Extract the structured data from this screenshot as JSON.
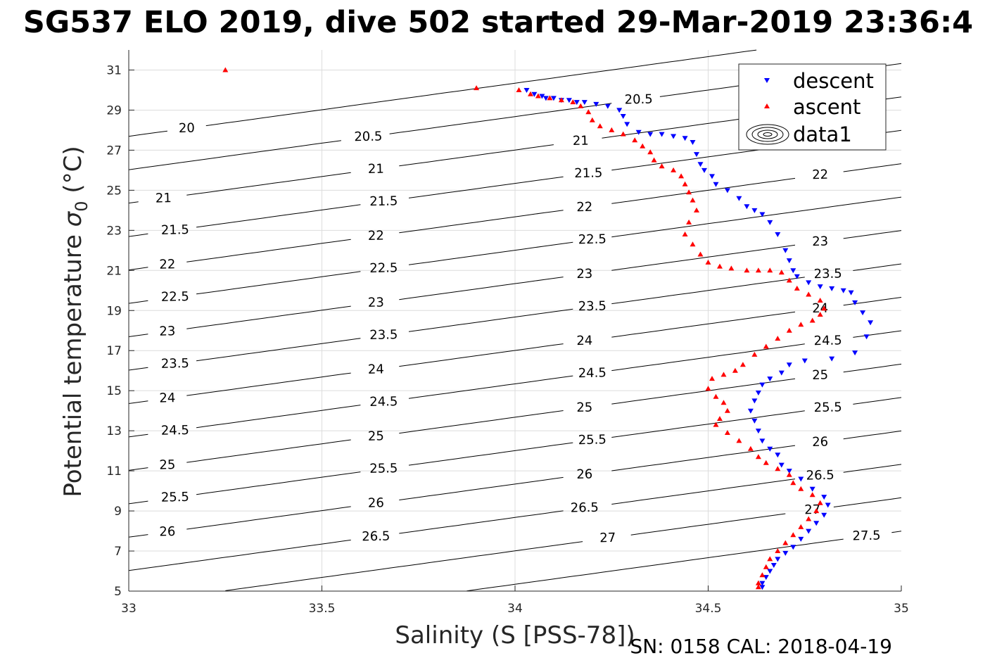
{
  "title": "SG537 ELO 2019, dive 502 started 29-Mar-2019 23:36:4",
  "footer": "SN: 0158  CAL: 2018-04-19",
  "chart_data": {
    "type": "scatter",
    "title": "SG537 ELO 2019, dive 502 started 29-Mar-2019 23:36:4",
    "xlabel": "Salinity (S [PSS-78])",
    "ylabel": "Potential temperature σ0 (°C)",
    "ylabel_main": "Potential temperature ",
    "ylabel_sigma": "σ",
    "ylabel_sub": "0",
    "ylabel_unit": " (°C)",
    "xlim": [
      33,
      35
    ],
    "ylim": [
      5,
      32
    ],
    "xticks": [
      33,
      33.5,
      34,
      34.5,
      35
    ],
    "xtick_labels": [
      "33",
      "33.5",
      "34",
      "34.5",
      "35"
    ],
    "yticks": [
      5,
      7,
      9,
      11,
      13,
      15,
      17,
      19,
      21,
      23,
      25,
      27,
      29,
      31
    ],
    "ytick_labels": [
      "5",
      "7",
      "9",
      "11",
      "13",
      "15",
      "17",
      "19",
      "21",
      "23",
      "25",
      "27",
      "29",
      "31"
    ],
    "grid": true,
    "legend_position": "top-right",
    "legend": [
      "descent",
      "ascent",
      "data1"
    ],
    "contour_levels": [
      20,
      20.5,
      21,
      21.5,
      22,
      22.5,
      23,
      23.5,
      24,
      24.5,
      25,
      25.5,
      26,
      26.5,
      27,
      27.5
    ],
    "contour_labels": [
      {
        "text": "20",
        "x": 33.15,
        "y": 30.4
      },
      {
        "text": "20.5",
        "x": 33.62,
        "y": 30.5
      },
      {
        "text": "20.5",
        "x": 34.32,
        "y": 31.6
      },
      {
        "text": "21",
        "x": 33.09,
        "y": 27.8
      },
      {
        "text": "21",
        "x": 33.64,
        "y": 29.0
      },
      {
        "text": "21",
        "x": 34.17,
        "y": 30.0
      },
      {
        "text": "21",
        "x": 34.8,
        "y": 31.5
      },
      {
        "text": "21.5",
        "x": 33.12,
        "y": 26.3
      },
      {
        "text": "21.5",
        "x": 33.66,
        "y": 27.6
      },
      {
        "text": "21.5",
        "x": 34.19,
        "y": 28.7
      },
      {
        "text": "22",
        "x": 33.1,
        "y": 24.7
      },
      {
        "text": "22",
        "x": 33.64,
        "y": 25.9
      },
      {
        "text": "22",
        "x": 34.18,
        "y": 27.2
      },
      {
        "text": "22",
        "x": 34.79,
        "y": 27.0
      },
      {
        "text": "22.5",
        "x": 33.12,
        "y": 22.9
      },
      {
        "text": "22.5",
        "x": 33.66,
        "y": 24.5
      },
      {
        "text": "22.5",
        "x": 34.2,
        "y": 25.7
      },
      {
        "text": "23",
        "x": 33.1,
        "y": 21.3
      },
      {
        "text": "23",
        "x": 33.64,
        "y": 23.0
      },
      {
        "text": "23",
        "x": 34.18,
        "y": 24.0
      },
      {
        "text": "23",
        "x": 34.79,
        "y": 25.3
      },
      {
        "text": "23.5",
        "x": 33.12,
        "y": 19.6
      },
      {
        "text": "23.5",
        "x": 33.66,
        "y": 21.3
      },
      {
        "text": "23.5",
        "x": 34.2,
        "y": 22.4
      },
      {
        "text": "23.5",
        "x": 34.81,
        "y": 23.7
      },
      {
        "text": "24",
        "x": 33.1,
        "y": 17.6
      },
      {
        "text": "24",
        "x": 33.64,
        "y": 19.5
      },
      {
        "text": "24",
        "x": 34.18,
        "y": 20.6
      },
      {
        "text": "24",
        "x": 34.79,
        "y": 21.8
      },
      {
        "text": "24.5",
        "x": 33.12,
        "y": 15.6
      },
      {
        "text": "24.5",
        "x": 33.66,
        "y": 17.4
      },
      {
        "text": "24.5",
        "x": 34.2,
        "y": 18.7
      },
      {
        "text": "24.5",
        "x": 34.81,
        "y": 20.2
      },
      {
        "text": "25",
        "x": 33.1,
        "y": 13.3
      },
      {
        "text": "25",
        "x": 33.64,
        "y": 15.3
      },
      {
        "text": "25",
        "x": 34.18,
        "y": 16.8
      },
      {
        "text": "25",
        "x": 34.79,
        "y": 18.3
      },
      {
        "text": "25.5",
        "x": 33.12,
        "y": 10.9
      },
      {
        "text": "25.5",
        "x": 33.66,
        "y": 12.9
      },
      {
        "text": "25.5",
        "x": 34.2,
        "y": 14.6
      },
      {
        "text": "25.5",
        "x": 34.81,
        "y": 16.6
      },
      {
        "text": "26",
        "x": 33.1,
        "y": 6.8
      },
      {
        "text": "26",
        "x": 33.64,
        "y": 9.3
      },
      {
        "text": "26",
        "x": 34.18,
        "y": 11.7
      },
      {
        "text": "26",
        "x": 34.79,
        "y": 13.7
      },
      {
        "text": "26.5",
        "x": 33.64,
        "y": 5.7
      },
      {
        "text": "26.5",
        "x": 34.18,
        "y": 8.7
      },
      {
        "text": "26.5",
        "x": 34.79,
        "y": 11.2
      },
      {
        "text": "27",
        "x": 34.24,
        "y": 5.6
      },
      {
        "text": "27",
        "x": 34.77,
        "y": 8.6
      },
      {
        "text": "27.5",
        "x": 34.91,
        "y": 5.5
      }
    ],
    "series": [
      {
        "name": "descent",
        "marker": "down-triangle",
        "color": "#0000ff",
        "points": [
          [
            34.03,
            30.0
          ],
          [
            34.05,
            29.8
          ],
          [
            34.07,
            29.7
          ],
          [
            34.08,
            29.6
          ],
          [
            34.1,
            29.6
          ],
          [
            34.12,
            29.5
          ],
          [
            34.14,
            29.5
          ],
          [
            34.16,
            29.4
          ],
          [
            34.18,
            29.4
          ],
          [
            34.21,
            29.3
          ],
          [
            34.24,
            29.2
          ],
          [
            34.27,
            29.0
          ],
          [
            34.28,
            28.7
          ],
          [
            34.29,
            28.3
          ],
          [
            34.32,
            27.9
          ],
          [
            34.35,
            27.8
          ],
          [
            34.38,
            27.8
          ],
          [
            34.41,
            27.7
          ],
          [
            34.44,
            27.6
          ],
          [
            34.46,
            27.4
          ],
          [
            34.47,
            26.8
          ],
          [
            34.48,
            26.3
          ],
          [
            34.49,
            26.0
          ],
          [
            34.51,
            25.7
          ],
          [
            34.52,
            25.3
          ],
          [
            34.55,
            25.0
          ],
          [
            34.58,
            24.6
          ],
          [
            34.6,
            24.2
          ],
          [
            34.62,
            24.0
          ],
          [
            34.64,
            23.8
          ],
          [
            34.66,
            23.4
          ],
          [
            34.68,
            22.8
          ],
          [
            34.7,
            22.0
          ],
          [
            34.71,
            21.5
          ],
          [
            34.72,
            21.0
          ],
          [
            34.73,
            20.7
          ],
          [
            34.76,
            20.4
          ],
          [
            34.79,
            20.2
          ],
          [
            34.82,
            20.1
          ],
          [
            34.85,
            20.0
          ],
          [
            34.87,
            19.9
          ],
          [
            34.88,
            19.4
          ],
          [
            34.9,
            18.9
          ],
          [
            34.92,
            18.4
          ],
          [
            34.91,
            17.7
          ],
          [
            34.88,
            16.9
          ],
          [
            34.82,
            16.6
          ],
          [
            34.75,
            16.5
          ],
          [
            34.71,
            16.3
          ],
          [
            34.69,
            15.9
          ],
          [
            34.66,
            15.6
          ],
          [
            34.64,
            15.3
          ],
          [
            34.63,
            14.9
          ],
          [
            34.62,
            14.5
          ],
          [
            34.61,
            14.0
          ],
          [
            34.62,
            13.5
          ],
          [
            34.63,
            13.0
          ],
          [
            34.64,
            12.5
          ],
          [
            34.66,
            12.1
          ],
          [
            34.68,
            11.8
          ],
          [
            34.69,
            11.3
          ],
          [
            34.71,
            11.0
          ],
          [
            34.74,
            10.6
          ],
          [
            34.77,
            10.1
          ],
          [
            34.8,
            9.7
          ],
          [
            34.81,
            9.3
          ],
          [
            34.8,
            8.8
          ],
          [
            34.78,
            8.4
          ],
          [
            34.76,
            8.0
          ],
          [
            34.74,
            7.6
          ],
          [
            34.72,
            7.2
          ],
          [
            34.7,
            6.9
          ],
          [
            34.68,
            6.6
          ],
          [
            34.67,
            6.3
          ],
          [
            34.66,
            6.0
          ],
          [
            34.65,
            5.7
          ],
          [
            34.64,
            5.4
          ],
          [
            34.64,
            5.2
          ]
        ]
      },
      {
        "name": "ascent",
        "marker": "up-triangle",
        "color": "#ff0000",
        "points": [
          [
            33.25,
            31.0
          ],
          [
            33.9,
            30.1
          ],
          [
            34.01,
            30.0
          ],
          [
            34.04,
            29.8
          ],
          [
            34.06,
            29.7
          ],
          [
            34.09,
            29.6
          ],
          [
            34.12,
            29.5
          ],
          [
            34.15,
            29.4
          ],
          [
            34.17,
            29.2
          ],
          [
            34.19,
            28.9
          ],
          [
            34.2,
            28.5
          ],
          [
            34.22,
            28.2
          ],
          [
            34.25,
            28.0
          ],
          [
            34.28,
            27.8
          ],
          [
            34.31,
            27.5
          ],
          [
            34.33,
            27.2
          ],
          [
            34.35,
            26.9
          ],
          [
            34.36,
            26.5
          ],
          [
            34.38,
            26.2
          ],
          [
            34.41,
            26.0
          ],
          [
            34.43,
            25.7
          ],
          [
            34.44,
            25.3
          ],
          [
            34.45,
            24.9
          ],
          [
            34.46,
            24.5
          ],
          [
            34.47,
            24.0
          ],
          [
            34.45,
            23.4
          ],
          [
            34.44,
            22.8
          ],
          [
            34.46,
            22.3
          ],
          [
            34.48,
            21.8
          ],
          [
            34.5,
            21.4
          ],
          [
            34.53,
            21.2
          ],
          [
            34.56,
            21.1
          ],
          [
            34.6,
            21.0
          ],
          [
            34.63,
            21.0
          ],
          [
            34.66,
            21.0
          ],
          [
            34.69,
            20.9
          ],
          [
            34.71,
            20.5
          ],
          [
            34.73,
            20.1
          ],
          [
            34.76,
            19.8
          ],
          [
            34.79,
            19.5
          ],
          [
            34.8,
            19.1
          ],
          [
            34.79,
            18.8
          ],
          [
            34.77,
            18.5
          ],
          [
            34.74,
            18.3
          ],
          [
            34.71,
            18.0
          ],
          [
            34.68,
            17.6
          ],
          [
            34.65,
            17.2
          ],
          [
            34.62,
            16.8
          ],
          [
            34.59,
            16.3
          ],
          [
            34.57,
            16.0
          ],
          [
            34.54,
            15.8
          ],
          [
            34.51,
            15.6
          ],
          [
            34.5,
            15.1
          ],
          [
            34.52,
            14.7
          ],
          [
            34.54,
            14.4
          ],
          [
            34.55,
            14.0
          ],
          [
            34.53,
            13.6
          ],
          [
            34.52,
            13.3
          ],
          [
            34.55,
            12.9
          ],
          [
            34.58,
            12.5
          ],
          [
            34.61,
            12.1
          ],
          [
            34.63,
            11.7
          ],
          [
            34.65,
            11.4
          ],
          [
            34.68,
            11.1
          ],
          [
            34.71,
            10.8
          ],
          [
            34.72,
            10.4
          ],
          [
            34.74,
            10.1
          ],
          [
            34.77,
            9.8
          ],
          [
            34.79,
            9.4
          ],
          [
            34.78,
            9.0
          ],
          [
            34.76,
            8.6
          ],
          [
            34.74,
            8.2
          ],
          [
            34.72,
            7.8
          ],
          [
            34.7,
            7.4
          ],
          [
            34.68,
            7.0
          ],
          [
            34.66,
            6.6
          ],
          [
            34.65,
            6.2
          ],
          [
            34.64,
            5.8
          ],
          [
            34.63,
            5.4
          ],
          [
            34.63,
            5.2
          ]
        ]
      }
    ]
  }
}
